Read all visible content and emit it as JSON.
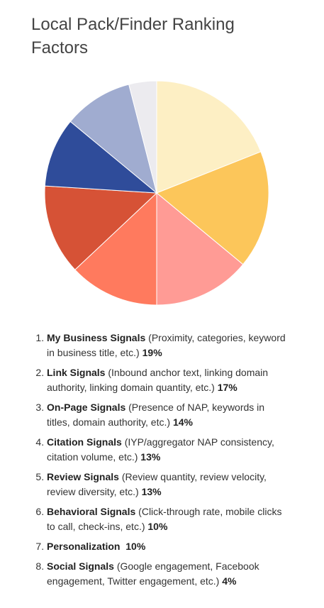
{
  "chart_data": {
    "type": "pie",
    "title": "Local Pack/Finder Ranking Factors",
    "categories": [
      "My Business Signals",
      "Link Signals",
      "On-Page Signals",
      "Citation Signals",
      "Review Signals",
      "Behavioral Signals",
      "Personalization",
      "Social Signals"
    ],
    "descriptions": [
      "(Proximity, categories, keyword in business title, etc.)",
      "(Inbound anchor text, linking domain authority, linking domain quantity, etc.)",
      "(Presence of NAP, keywords in titles, domain authority, etc.)",
      "(IYP/aggregator NAP consistency, citation volume, etc.)",
      "(Review quantity, review velocity, review diversity, etc.)",
      "(Click-through rate, mobile clicks to call, check-ins, etc.)",
      null,
      "(Google engagement, Facebook engagement, Twitter engagement, etc.)"
    ],
    "values": [
      19,
      17,
      14,
      13,
      13,
      10,
      10,
      4
    ],
    "value_labels": [
      "19%",
      "17%",
      "14%",
      "13%",
      "13%",
      "10%",
      "10%",
      "4%"
    ],
    "colors": [
      "#fdefc4",
      "#fcc65a",
      "#ff9b95",
      "#ff7a5e",
      "#d65236",
      "#2f4c9a",
      "#a0acd0",
      "#ecebef"
    ]
  }
}
